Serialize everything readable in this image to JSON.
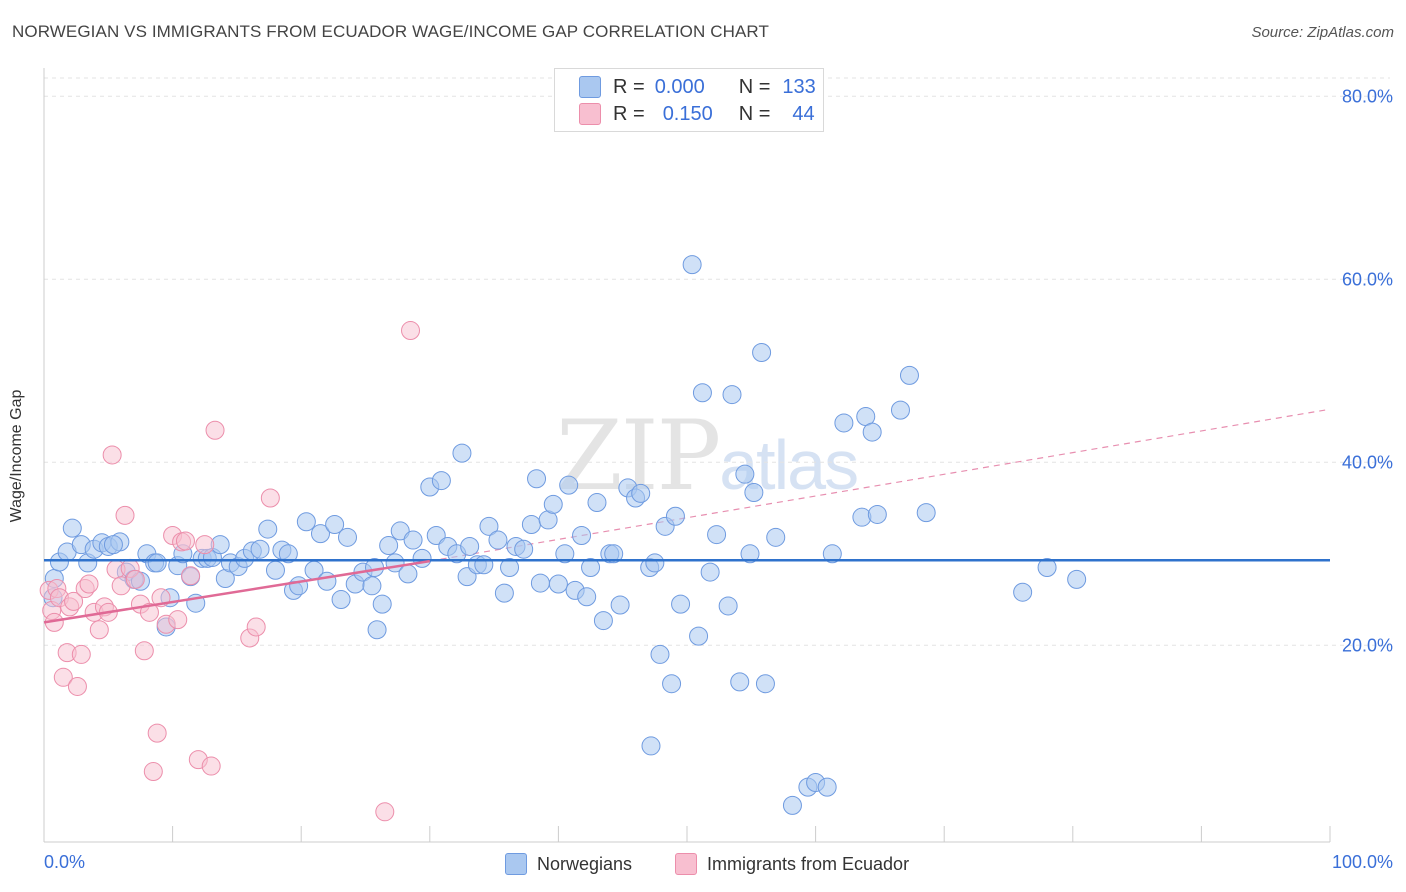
{
  "title": "NORWEGIAN VS IMMIGRANTS FROM ECUADOR WAGE/INCOME GAP CORRELATION CHART",
  "source": "Source: ZipAtlas.com",
  "watermark": {
    "zip": "ZIP",
    "atlas": "atlas"
  },
  "legend": {
    "r_label": "R =",
    "n_label": "N =",
    "blue": {
      "r": "0.000",
      "n": "133"
    },
    "pink": {
      "r": "0.150",
      "n": "44"
    }
  },
  "bottom_legend": {
    "blue": "Norwegians",
    "pink": "Immigrants from Ecuador"
  },
  "colors": {
    "blue_fill": "#aac8f0",
    "blue_stroke": "#6f9be0",
    "blue_line": "#2f72cc",
    "pink_fill": "#f8bfd0",
    "pink_stroke": "#ec8eab",
    "pink_line": "#e06a96",
    "axis_text": "#3a6fd8"
  },
  "chart_data": {
    "type": "scatter",
    "title": "NORWEGIAN VS IMMIGRANTS FROM ECUADOR WAGE/INCOME GAP CORRELATION CHART",
    "xlabel": "",
    "ylabel": "Wage/Income Gap",
    "xlim": [
      0,
      100
    ],
    "ylim": [
      -1.5,
      82
    ],
    "x_tick_labels": [
      "0.0%",
      "100.0%"
    ],
    "y_ticks": [
      20,
      40,
      60,
      80
    ],
    "y_tick_labels": [
      "20.0%",
      "40.0%",
      "60.0%",
      "80.0%"
    ],
    "grid": true,
    "series": [
      {
        "name": "Norwegians",
        "r": 0.0,
        "n": 133,
        "trend": {
          "x0": 0,
          "y0": 29.3,
          "x1": 100,
          "y1": 29.3
        },
        "points": [
          [
            0.8,
            27.3
          ],
          [
            0.7,
            25.2
          ],
          [
            1.2,
            29.1
          ],
          [
            1.8,
            30.2
          ],
          [
            2.2,
            32.8
          ],
          [
            2.9,
            31.0
          ],
          [
            3.4,
            29.0
          ],
          [
            3.9,
            30.5
          ],
          [
            4.5,
            31.2
          ],
          [
            5.0,
            30.8
          ],
          [
            5.9,
            31.3
          ],
          [
            5.4,
            31.0
          ],
          [
            6.4,
            28.0
          ],
          [
            7.0,
            27.2
          ],
          [
            7.5,
            27.0
          ],
          [
            8.0,
            30.0
          ],
          [
            8.6,
            29.0
          ],
          [
            8.8,
            29.0
          ],
          [
            9.5,
            22.0
          ],
          [
            9.8,
            25.2
          ],
          [
            10.4,
            28.7
          ],
          [
            10.8,
            30.0
          ],
          [
            11.4,
            27.5
          ],
          [
            11.8,
            24.6
          ],
          [
            12.3,
            29.5
          ],
          [
            12.7,
            29.5
          ],
          [
            13.1,
            29.6
          ],
          [
            13.7,
            31.0
          ],
          [
            14.1,
            27.3
          ],
          [
            14.5,
            29.0
          ],
          [
            15.1,
            28.6
          ],
          [
            15.6,
            29.5
          ],
          [
            16.2,
            30.3
          ],
          [
            16.8,
            30.5
          ],
          [
            17.4,
            32.7
          ],
          [
            18.0,
            28.2
          ],
          [
            18.5,
            30.4
          ],
          [
            19.0,
            30.0
          ],
          [
            19.4,
            26.0
          ],
          [
            19.8,
            26.5
          ],
          [
            20.4,
            33.5
          ],
          [
            21.0,
            28.2
          ],
          [
            21.5,
            32.2
          ],
          [
            22.0,
            27.0
          ],
          [
            22.6,
            33.2
          ],
          [
            23.1,
            25.0
          ],
          [
            23.6,
            31.8
          ],
          [
            24.2,
            26.7
          ],
          [
            24.8,
            28.0
          ],
          [
            25.5,
            26.5
          ],
          [
            25.7,
            28.5
          ],
          [
            25.9,
            21.7
          ],
          [
            26.3,
            24.5
          ],
          [
            26.8,
            30.9
          ],
          [
            27.3,
            29.0
          ],
          [
            27.7,
            32.5
          ],
          [
            28.3,
            27.8
          ],
          [
            28.7,
            31.5
          ],
          [
            29.4,
            29.5
          ],
          [
            30.0,
            37.3
          ],
          [
            30.5,
            32.0
          ],
          [
            30.9,
            38.0
          ],
          [
            31.4,
            30.8
          ],
          [
            32.1,
            30.0
          ],
          [
            32.5,
            41.0
          ],
          [
            32.9,
            27.5
          ],
          [
            33.1,
            30.8
          ],
          [
            33.7,
            28.8
          ],
          [
            34.2,
            28.8
          ],
          [
            34.6,
            33.0
          ],
          [
            35.3,
            31.5
          ],
          [
            35.8,
            25.7
          ],
          [
            36.2,
            28.5
          ],
          [
            36.7,
            30.8
          ],
          [
            37.3,
            30.5
          ],
          [
            37.9,
            33.2
          ],
          [
            38.3,
            38.2
          ],
          [
            38.6,
            26.8
          ],
          [
            39.2,
            33.7
          ],
          [
            39.6,
            35.4
          ],
          [
            40.0,
            26.7
          ],
          [
            40.5,
            30.0
          ],
          [
            40.8,
            37.5
          ],
          [
            41.3,
            26.0
          ],
          [
            41.8,
            32.0
          ],
          [
            42.2,
            25.3
          ],
          [
            42.5,
            28.5
          ],
          [
            43.0,
            35.6
          ],
          [
            43.5,
            22.7
          ],
          [
            44.0,
            30.0
          ],
          [
            44.3,
            30.0
          ],
          [
            44.8,
            24.4
          ],
          [
            45.4,
            37.2
          ],
          [
            46.0,
            36.1
          ],
          [
            46.4,
            36.6
          ],
          [
            47.1,
            28.5
          ],
          [
            47.5,
            29.0
          ],
          [
            47.9,
            19.0
          ],
          [
            48.3,
            33.0
          ],
          [
            48.8,
            15.8
          ],
          [
            49.1,
            34.1
          ],
          [
            49.5,
            24.5
          ],
          [
            50.4,
            61.6
          ],
          [
            50.9,
            21.0
          ],
          [
            51.2,
            47.6
          ],
          [
            51.8,
            28.0
          ],
          [
            52.3,
            32.1
          ],
          [
            53.2,
            24.3
          ],
          [
            53.5,
            47.4
          ],
          [
            54.1,
            16.0
          ],
          [
            54.5,
            38.7
          ],
          [
            54.9,
            30.0
          ],
          [
            55.2,
            36.7
          ],
          [
            55.8,
            52.0
          ],
          [
            56.1,
            15.8
          ],
          [
            56.9,
            31.8
          ],
          [
            58.2,
            2.5
          ],
          [
            59.4,
            4.5
          ],
          [
            60.0,
            5.0
          ],
          [
            60.9,
            4.5
          ],
          [
            61.3,
            30.0
          ],
          [
            62.2,
            44.3
          ],
          [
            63.6,
            34.0
          ],
          [
            63.9,
            45.0
          ],
          [
            64.4,
            43.3
          ],
          [
            64.8,
            34.3
          ],
          [
            66.6,
            45.7
          ],
          [
            67.3,
            49.5
          ],
          [
            68.6,
            34.5
          ],
          [
            76.1,
            25.8
          ],
          [
            78.0,
            28.5
          ],
          [
            80.3,
            27.2
          ],
          [
            47.2,
            9.0
          ]
        ]
      },
      {
        "name": "Immigrants from Ecuador",
        "r": 0.15,
        "n": 44,
        "trend": {
          "x0": 0,
          "y0": 22.5,
          "x1": 30,
          "y1": 29.2
        },
        "trend_extension": {
          "x0": 30,
          "y0": 29.2,
          "x1": 100,
          "y1": 45.8
        },
        "points": [
          [
            0.4,
            26.0
          ],
          [
            0.6,
            23.8
          ],
          [
            0.8,
            22.5
          ],
          [
            1.0,
            26.2
          ],
          [
            1.2,
            25.2
          ],
          [
            1.5,
            16.5
          ],
          [
            1.8,
            19.2
          ],
          [
            2.0,
            24.2
          ],
          [
            2.3,
            24.8
          ],
          [
            2.6,
            15.5
          ],
          [
            2.9,
            19.0
          ],
          [
            3.2,
            26.2
          ],
          [
            3.5,
            26.7
          ],
          [
            3.9,
            23.6
          ],
          [
            4.3,
            21.7
          ],
          [
            4.7,
            24.2
          ],
          [
            5.0,
            23.6
          ],
          [
            5.3,
            40.8
          ],
          [
            5.6,
            28.3
          ],
          [
            6.0,
            26.5
          ],
          [
            6.3,
            34.2
          ],
          [
            6.7,
            28.4
          ],
          [
            7.1,
            27.2
          ],
          [
            7.5,
            24.5
          ],
          [
            7.8,
            19.4
          ],
          [
            8.2,
            23.6
          ],
          [
            8.5,
            6.2
          ],
          [
            8.8,
            10.4
          ],
          [
            9.1,
            25.2
          ],
          [
            9.5,
            22.3
          ],
          [
            10.0,
            32.0
          ],
          [
            10.4,
            22.8
          ],
          [
            10.7,
            31.3
          ],
          [
            11.0,
            31.4
          ],
          [
            11.4,
            27.6
          ],
          [
            12.0,
            7.5
          ],
          [
            12.5,
            31.0
          ],
          [
            13.0,
            6.8
          ],
          [
            13.3,
            43.5
          ],
          [
            16.0,
            20.8
          ],
          [
            16.5,
            22.0
          ],
          [
            17.6,
            36.1
          ],
          [
            26.5,
            1.8
          ],
          [
            28.5,
            54.4
          ]
        ]
      }
    ]
  }
}
